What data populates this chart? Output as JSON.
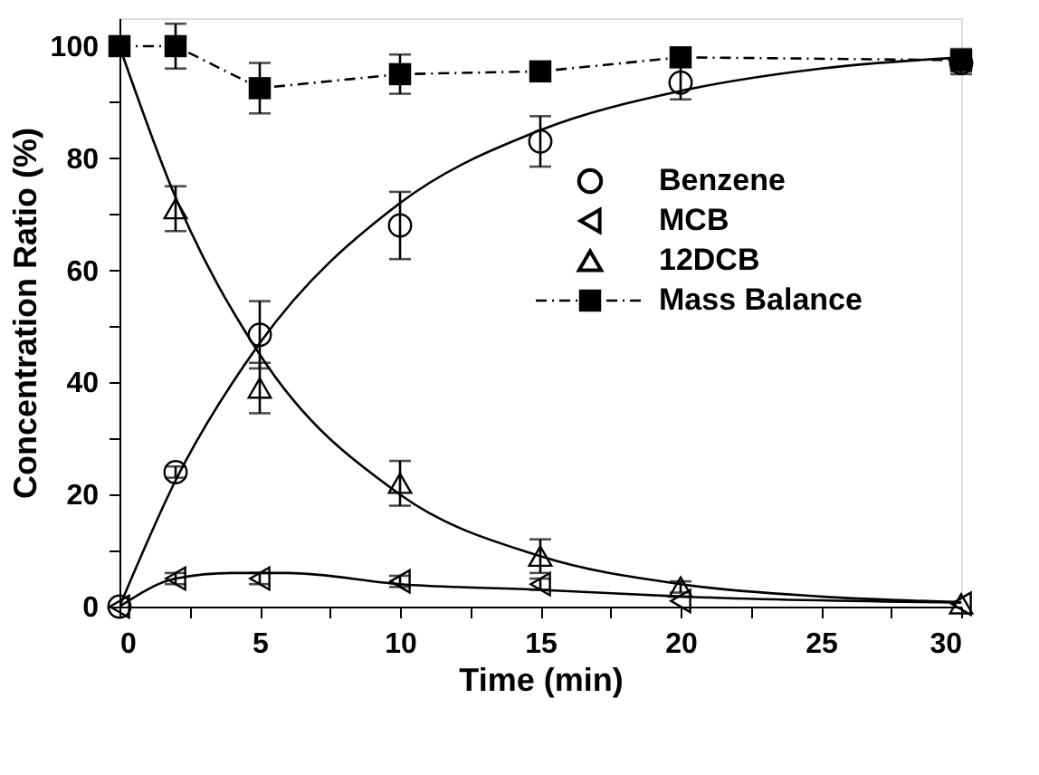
{
  "chart_data": {
    "type": "scatter",
    "xlabel": "Time (min)",
    "ylabel": "Concentration Ratio (%)",
    "x": [
      0,
      2,
      5,
      10,
      15,
      20,
      30
    ],
    "xlim": [
      0,
      30
    ],
    "xticks": [
      0,
      {
        "value": 2.5,
        "label": null
      },
      5,
      {
        "value": 7.5,
        "label": null
      },
      10,
      {
        "value": 12.5,
        "label": null
      },
      15,
      {
        "value": 17.5,
        "label": null
      },
      20,
      {
        "value": 22.5,
        "label": null
      },
      25,
      {
        "value": 27.5,
        "label": null
      },
      30
    ],
    "ylim": [
      0,
      105
    ],
    "yticks": [
      0,
      {
        "value": 10,
        "label": null
      },
      20,
      {
        "value": 30,
        "label": null
      },
      40,
      {
        "value": 50,
        "label": null
      },
      60,
      {
        "value": 70,
        "label": null
      },
      80,
      {
        "value": 90,
        "label": null
      },
      100
    ],
    "grid": false,
    "legend": "right",
    "series": [
      {
        "name": "Benzene",
        "color": "#000000",
        "marker": "circle",
        "values": [
          0,
          24,
          48.5,
          68,
          83,
          93.5,
          97
        ],
        "errors": [
          null,
          1,
          6,
          6,
          4.5,
          3,
          2
        ]
      },
      {
        "name": "MCB",
        "color": "#000000",
        "marker": "triangle-left",
        "values": [
          0,
          5,
          5,
          4.5,
          4,
          1,
          0.5
        ],
        "errors": [
          null,
          1,
          1,
          1,
          1,
          null,
          null
        ]
      },
      {
        "name": "12DCB",
        "color": "#000000",
        "marker": "triangle",
        "values": [
          null,
          71,
          39,
          22,
          9,
          3.5,
          0.5
        ],
        "errors": [
          null,
          4,
          4.5,
          4,
          3,
          1,
          null
        ]
      },
      {
        "name": "Mass Balance",
        "type": "line",
        "color": "#000000",
        "marker": "square",
        "line_style": "dashed",
        "values": [
          100,
          100,
          92.5,
          95,
          95.5,
          98,
          97.5
        ],
        "errors": [
          null,
          4,
          4.5,
          3.5,
          null,
          null,
          2
        ]
      },
      {
        "type": "line",
        "color": "#000000",
        "marker": "none",
        "x": [
          0,
          2,
          5,
          10,
          15,
          20,
          25,
          30
        ],
        "values": [
          0,
          22.5,
          47,
          72,
          85,
          92,
          96,
          98
        ]
      },
      {
        "type": "line",
        "color": "#000000",
        "marker": "none",
        "x": [
          0,
          2,
          5,
          10,
          15,
          20,
          25,
          30
        ],
        "values": [
          100,
          73,
          45,
          20,
          9,
          4,
          1.8,
          0.8
        ]
      },
      {
        "type": "line",
        "color": "#000000",
        "marker": "none",
        "x": [
          0,
          2,
          4,
          6,
          10,
          15,
          20,
          30
        ],
        "values": [
          0,
          5,
          6,
          6,
          4,
          3,
          1.8,
          0.7
        ]
      }
    ]
  }
}
